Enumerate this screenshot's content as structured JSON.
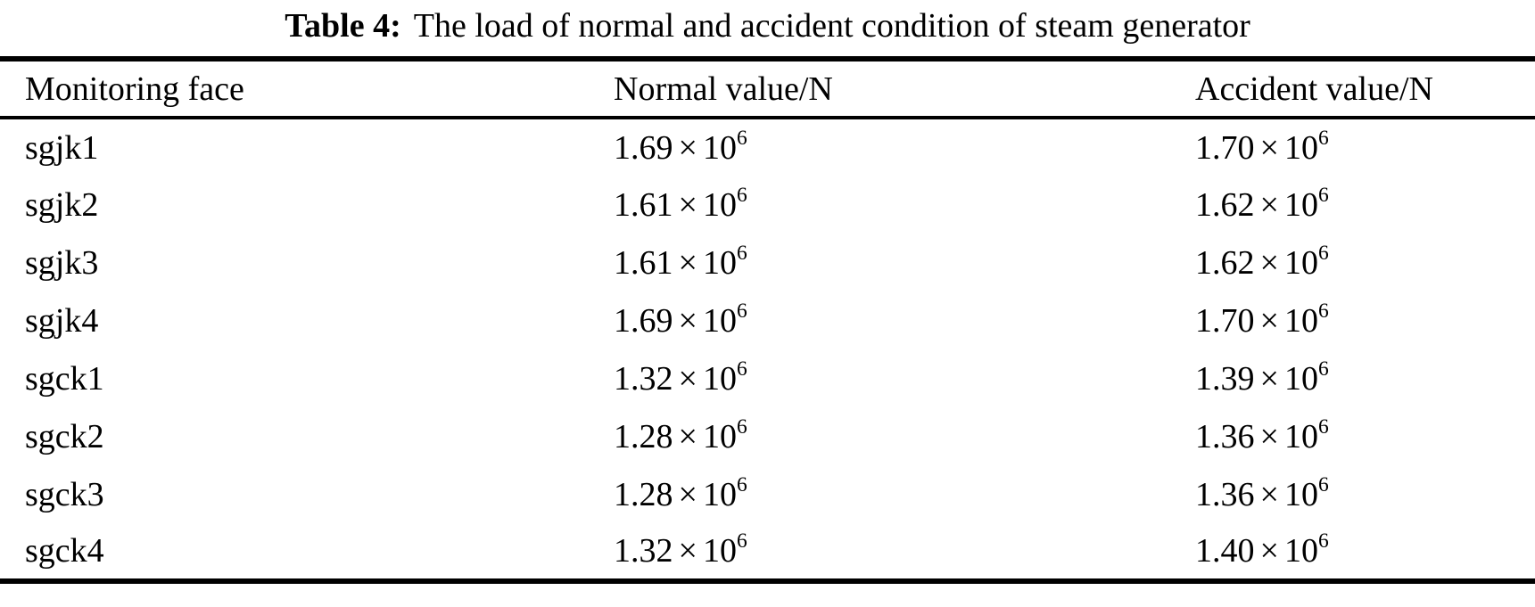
{
  "caption": {
    "label": "Table 4:",
    "text": "The load of normal and accident condition of steam generator"
  },
  "table": {
    "columns": [
      "Monitoring face",
      "Normal value/N",
      "Accident value/N"
    ],
    "value_format": {
      "times": "×",
      "base": "10",
      "exponent": "6"
    },
    "rows": [
      {
        "face": "sgjk1",
        "normal": "1.69",
        "accident": "1.70"
      },
      {
        "face": "sgjk2",
        "normal": "1.61",
        "accident": "1.62"
      },
      {
        "face": "sgjk3",
        "normal": "1.61",
        "accident": "1.62"
      },
      {
        "face": "sgjk4",
        "normal": "1.69",
        "accident": "1.70"
      },
      {
        "face": "sgck1",
        "normal": "1.32",
        "accident": "1.39"
      },
      {
        "face": "sgck2",
        "normal": "1.28",
        "accident": "1.36"
      },
      {
        "face": "sgck3",
        "normal": "1.28",
        "accident": "1.36"
      },
      {
        "face": "sgck4",
        "normal": "1.32",
        "accident": "1.40"
      }
    ]
  },
  "chart_data": {
    "type": "table",
    "title": "Table 4: The load of normal and accident condition of steam generator",
    "columns": [
      "Monitoring face",
      "Normal value/N",
      "Accident value/N"
    ],
    "rows": [
      [
        "sgjk1",
        1690000,
        1700000
      ],
      [
        "sgjk2",
        1610000,
        1620000
      ],
      [
        "sgjk3",
        1610000,
        1620000
      ],
      [
        "sgjk4",
        1690000,
        1700000
      ],
      [
        "sgck1",
        1320000,
        1390000
      ],
      [
        "sgck2",
        1280000,
        1360000
      ],
      [
        "sgck3",
        1280000,
        1360000
      ],
      [
        "sgck4",
        1320000,
        1400000
      ]
    ]
  }
}
